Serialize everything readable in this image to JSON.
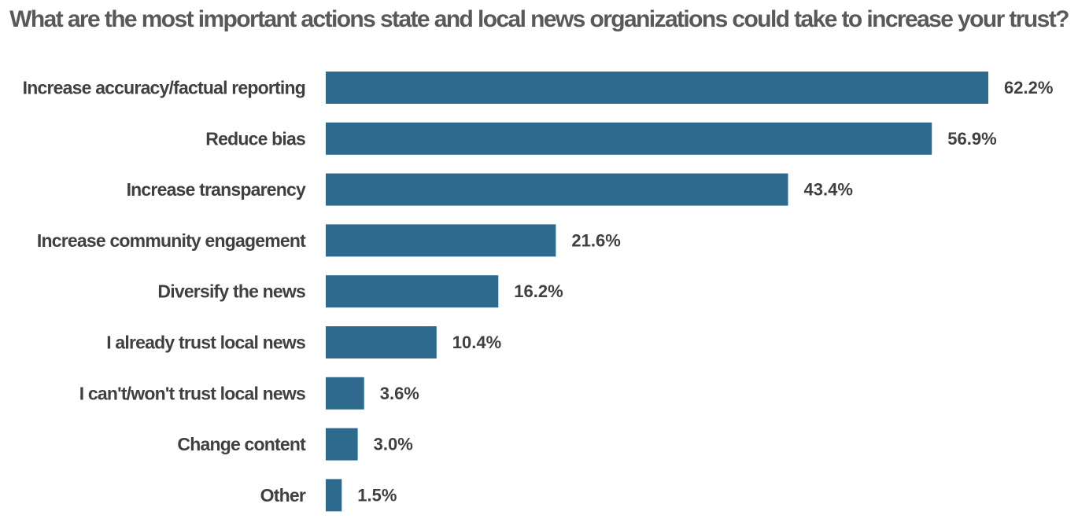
{
  "chart_data": {
    "type": "bar",
    "orientation": "horizontal",
    "title": "What are the most important actions state and local news organizations could take to increase your trust?",
    "categories": [
      "Increase accuracy/factual reporting",
      "Reduce bias",
      "Increase transparency",
      "Increase community engagement",
      "Diversify the news",
      "I already trust local news",
      "I can't/won't trust local news",
      "Change content",
      "Other"
    ],
    "values": [
      62.2,
      56.9,
      43.4,
      21.6,
      16.2,
      10.4,
      3.6,
      3.0,
      1.5
    ],
    "value_labels": [
      "62.2%",
      "56.9%",
      "43.4%",
      "21.6%",
      "16.2%",
      "10.4%",
      "3.6%",
      "3.0%",
      "1.5%"
    ],
    "unit": "%",
    "xlim": [
      0,
      62.2
    ],
    "grid": false,
    "legend": "none",
    "bar_color": "#2e6a8e"
  }
}
